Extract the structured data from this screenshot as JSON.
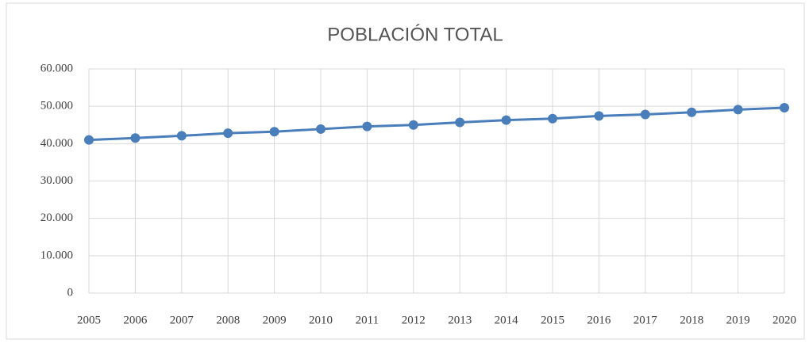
{
  "chart_data": {
    "type": "line",
    "title": "POBLACIÓN TOTAL",
    "categories": [
      "2005",
      "2006",
      "2007",
      "2008",
      "2009",
      "2010",
      "2011",
      "2012",
      "2013",
      "2014",
      "2015",
      "2016",
      "2017",
      "2018",
      "2019",
      "2020"
    ],
    "values": [
      41000,
      41500,
      42100,
      42800,
      43200,
      43900,
      44600,
      45000,
      45700,
      46300,
      46700,
      47400,
      47800,
      48400,
      49100,
      49600
    ],
    "color": "#4a7ebb",
    "ylim": [
      0,
      60000
    ],
    "yticks": [
      0,
      {
        "value": 10000,
        "label": "10.000"
      },
      {
        "value": 20000,
        "label": "20.000"
      },
      {
        "value": 30000,
        "label": "30.000"
      },
      {
        "value": 40000,
        "label": "40.000"
      },
      {
        "value": 50000,
        "label": "50.000"
      },
      {
        "value": 60000,
        "label": "60.000"
      }
    ],
    "grid": true
  }
}
